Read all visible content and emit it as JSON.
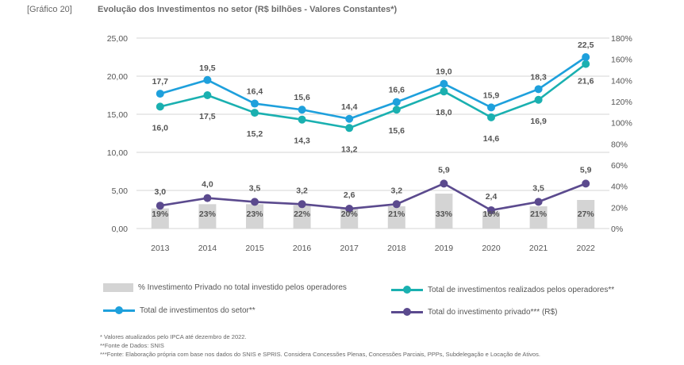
{
  "header": {
    "label": "[Gráfico 20]",
    "title": "Evolução dos Investimentos no setor (R$ bilhões - Valores Constantes*)"
  },
  "colors": {
    "setor": "#1ea0dc",
    "operadores": "#1ab0b0",
    "privado": "#5b4a8e",
    "bars": "#d4d4d4",
    "grid": "#d6d6d6"
  },
  "legend": {
    "bars": "% Investimento Privado no total investido pelos operadores",
    "operadores": "Total de investimentos realizados pelos operadores**",
    "setor": "Total de investimentos do setor**",
    "privado": "Total do investimento privado*** (R$)"
  },
  "notes": {
    "n1": "* Valores atualizados pelo IPCA até dezembro de 2022.",
    "n2": "**Fonte de Dados: SNIS",
    "n3": "***Fonte: Elaboração própria com base nos dados do SNIS e SPRIS. Considera Concessões Plenas, Concessões Parciais, PPPs, Subdelegação e Locação de Ativos."
  },
  "chart_data": {
    "type": "line",
    "categories": [
      "2013",
      "2014",
      "2015",
      "2016",
      "2017",
      "2018",
      "2019",
      "2020",
      "2021",
      "2022"
    ],
    "y_left": {
      "ylim": [
        0,
        25
      ],
      "ticks": [
        "0,00",
        "5,00",
        "10,00",
        "15,00",
        "20,00",
        "25,00"
      ]
    },
    "y_right": {
      "ylim": [
        0,
        180
      ],
      "ticks": [
        "0%",
        "20%",
        "40%",
        "60%",
        "80%",
        "100%",
        "120%",
        "140%",
        "160%",
        "180%"
      ]
    },
    "grid": true,
    "legend_position": "bottom",
    "series": [
      {
        "name": "Total de investimentos do setor**",
        "key": "setor",
        "axis": "left",
        "values": [
          17.7,
          19.5,
          16.4,
          15.6,
          14.4,
          16.6,
          19.0,
          15.9,
          18.3,
          22.5
        ],
        "labels": [
          "17,7",
          "19,5",
          "16,4",
          "15,6",
          "14,4",
          "16,6",
          "19,0",
          "15,9",
          "18,3",
          "22,5"
        ]
      },
      {
        "name": "Total de investimentos realizados pelos operadores**",
        "key": "operadores",
        "axis": "left",
        "values": [
          16.0,
          17.5,
          15.2,
          14.3,
          13.2,
          15.6,
          18.0,
          14.6,
          16.9,
          21.6
        ],
        "labels": [
          "16,0",
          "17,5",
          "15,2",
          "14,3",
          "13,2",
          "15,6",
          "18,0",
          "14,6",
          "16,9",
          "21,6"
        ]
      },
      {
        "name": "Total do investimento privado*** (R$)",
        "key": "privado",
        "axis": "left",
        "values": [
          3.0,
          4.0,
          3.5,
          3.2,
          2.6,
          3.2,
          5.9,
          2.4,
          3.5,
          5.9
        ],
        "labels": [
          "3,0",
          "4,0",
          "3,5",
          "3,2",
          "2,6",
          "3,2",
          "5,9",
          "2,4",
          "3,5",
          "5,9"
        ]
      },
      {
        "name": "% Investimento Privado no total investido pelos operadores",
        "key": "bars",
        "axis": "right",
        "type": "bar",
        "values": [
          19,
          23,
          23,
          22,
          20,
          21,
          33,
          16,
          21,
          27
        ],
        "labels": [
          "19%",
          "23%",
          "23%",
          "22%",
          "20%",
          "21%",
          "33%",
          "16%",
          "21%",
          "27%"
        ]
      }
    ]
  }
}
